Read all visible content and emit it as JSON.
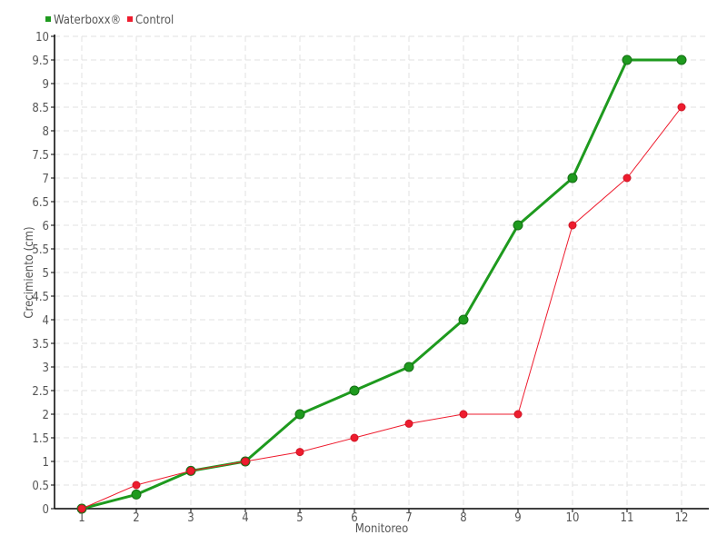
{
  "chart_data": {
    "type": "line",
    "title": "",
    "xlabel": "Monitoreo",
    "ylabel": "Crecimiento (cm)",
    "categories": [
      "1",
      "2",
      "3",
      "4",
      "5",
      "6",
      "7",
      "8",
      "9",
      "10",
      "11",
      "12"
    ],
    "ylim": [
      0,
      10
    ],
    "yticks": [
      "0",
      "0.5",
      "1",
      "1.5",
      "2",
      "2.5",
      "3",
      "3.5",
      "4",
      "4.5",
      "5",
      "5.5",
      "6",
      "6.5",
      "7",
      "7.5",
      "8",
      "8.5",
      "9",
      "9.5",
      "10"
    ],
    "grid": true,
    "legend_position": "top-left",
    "series": [
      {
        "name": "Waterboxx®",
        "color": "#1e9a1e",
        "values": [
          0,
          0.3,
          0.8,
          1,
          2,
          2.5,
          3,
          4,
          6,
          7,
          9.5,
          9.5
        ]
      },
      {
        "name": "Control",
        "color": "#ee1c2e",
        "values": [
          0,
          0.5,
          0.8,
          1,
          1.2,
          1.5,
          1.8,
          2,
          2,
          6,
          7,
          8.5
        ]
      }
    ]
  }
}
